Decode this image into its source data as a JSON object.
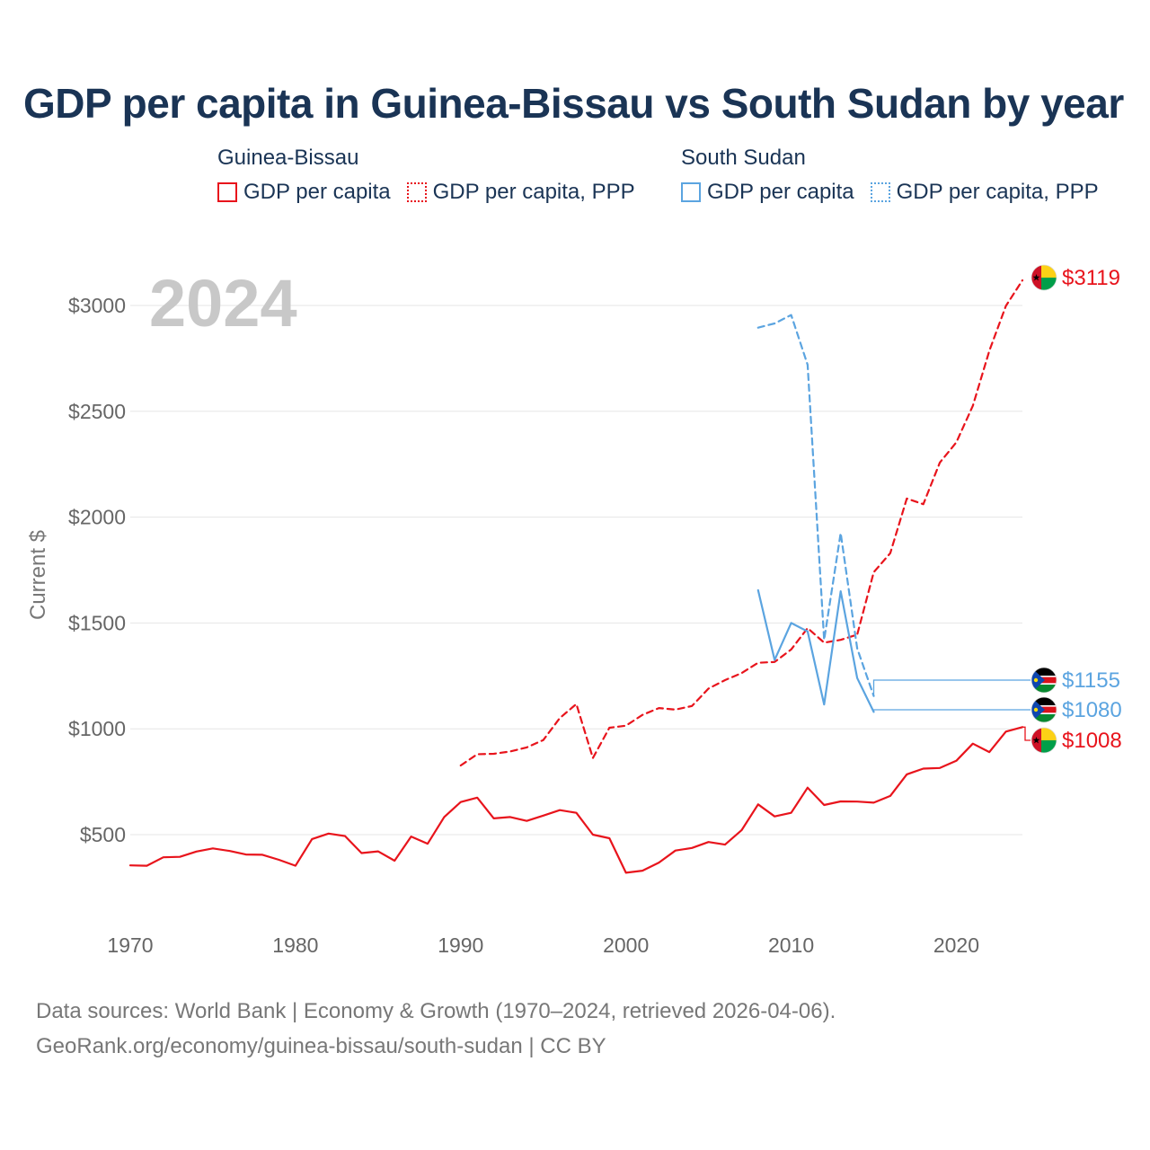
{
  "title": "GDP per capita in Guinea-Bissau vs South Sudan by year",
  "legend": {
    "groups": [
      {
        "country": "Guinea-Bissau",
        "items": [
          {
            "label": "GDP per capita",
            "style": "solid",
            "color": "#e8141c"
          },
          {
            "label": "GDP per capita, PPP",
            "style": "dotted",
            "color": "#e8141c"
          }
        ]
      },
      {
        "country": "South Sudan",
        "items": [
          {
            "label": "GDP per capita",
            "style": "solid",
            "color": "#5ba4e0"
          },
          {
            "label": "GDP per capita, PPP",
            "style": "dotted",
            "color": "#5ba4e0"
          }
        ]
      }
    ]
  },
  "year_watermark": "2024",
  "source_line1": "Data sources: World Bank | Economy & Growth (1970–2024, retrieved 2026-04-06).",
  "source_line2": "GeoRank.org/economy/guinea-bissau/south-sudan | CC BY",
  "colors": {
    "guinea_bissau": "#e8141c",
    "south_sudan": "#5ba4e0",
    "grid": "#e6e6e6",
    "axis_text": "#666666"
  },
  "chart_data": {
    "type": "line",
    "ylabel": "Current $",
    "xlabel": "",
    "xlim": [
      1970,
      2024
    ],
    "ylim": [
      0,
      3100
    ],
    "yticks": [
      500,
      1000,
      1500,
      2000,
      2500,
      3000
    ],
    "ytick_labels": [
      "$500",
      "$1000",
      "$1500",
      "$2000",
      "$2500",
      "$3000"
    ],
    "xticks": [
      1970,
      1980,
      1990,
      2000,
      2010,
      2020
    ],
    "xtick_labels": [
      "1970",
      "1980",
      "1990",
      "2000",
      "2010",
      "2020"
    ],
    "series": [
      {
        "name": "Guinea-Bissau GDP per capita",
        "country": "guinea_bissau",
        "style": "solid",
        "color": "#e8141c",
        "end_label": "$1008",
        "x": [
          1970,
          1971,
          1972,
          1973,
          1974,
          1975,
          1976,
          1977,
          1978,
          1979,
          1980,
          1981,
          1982,
          1983,
          1984,
          1985,
          1986,
          1987,
          1988,
          1989,
          1990,
          1991,
          1992,
          1993,
          1994,
          1995,
          1996,
          1997,
          1998,
          1999,
          2000,
          2001,
          2002,
          2003,
          2004,
          2005,
          2006,
          2007,
          2008,
          2009,
          2010,
          2011,
          2012,
          2013,
          2014,
          2015,
          2016,
          2017,
          2018,
          2019,
          2020,
          2021,
          2022,
          2023,
          2024
        ],
        "values": [
          355,
          353,
          393,
          395,
          420,
          435,
          423,
          406,
          405,
          381,
          353,
          479,
          505,
          493,
          413,
          421,
          377,
          491,
          457,
          583,
          654,
          675,
          577,
          583,
          565,
          590,
          616,
          603,
          500,
          483,
          320,
          330,
          368,
          425,
          437,
          465,
          453,
          521,
          643,
          586,
          603,
          722,
          640,
          657,
          656,
          651,
          683,
          785,
          812,
          815,
          849,
          930,
          890,
          987,
          1008
        ]
      },
      {
        "name": "Guinea-Bissau GDP per capita, PPP",
        "country": "guinea_bissau",
        "style": "dashed",
        "color": "#e8141c",
        "end_label": "$3119",
        "x": [
          1990,
          1991,
          1992,
          1993,
          1994,
          1995,
          1996,
          1997,
          1998,
          1999,
          2000,
          2001,
          2002,
          2003,
          2004,
          2005,
          2006,
          2007,
          2008,
          2009,
          2010,
          2011,
          2012,
          2013,
          2014,
          2015,
          2016,
          2017,
          2018,
          2019,
          2020,
          2021,
          2022,
          2023,
          2024
        ],
        "values": [
          827,
          880,
          882,
          893,
          912,
          947,
          1051,
          1117,
          862,
          1005,
          1015,
          1066,
          1098,
          1091,
          1108,
          1190,
          1230,
          1263,
          1312,
          1316,
          1375,
          1476,
          1407,
          1420,
          1445,
          1740,
          1830,
          2088,
          2061,
          2258,
          2353,
          2526,
          2786,
          2998,
          3119
        ]
      },
      {
        "name": "South Sudan GDP per capita",
        "country": "south_sudan",
        "style": "solid",
        "color": "#5ba4e0",
        "end_label": "$1080",
        "x": [
          2008,
          2009,
          2010,
          2011,
          2012,
          2013,
          2014,
          2015
        ],
        "values": [
          1655,
          1325,
          1500,
          1460,
          1115,
          1650,
          1240,
          1080
        ]
      },
      {
        "name": "South Sudan GDP per capita, PPP",
        "country": "south_sudan",
        "style": "dashed",
        "color": "#5ba4e0",
        "end_label": "$1155",
        "x": [
          2008,
          2009,
          2010,
          2011,
          2012,
          2013,
          2014,
          2015
        ],
        "values": [
          2895,
          2915,
          2955,
          2720,
          1420,
          1925,
          1380,
          1155
        ]
      }
    ]
  }
}
